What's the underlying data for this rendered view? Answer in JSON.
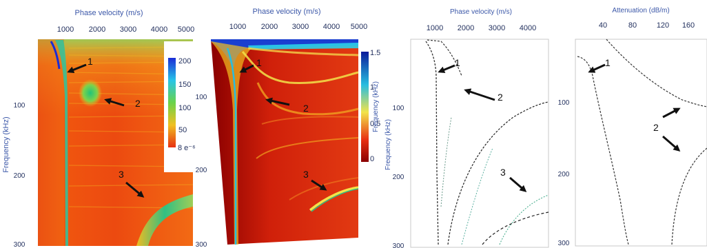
{
  "panels": {
    "a": {
      "x_title": "Phase velocity (m/s)",
      "x_ticks": [
        "1000",
        "2000",
        "3000",
        "4000",
        "5000"
      ],
      "y_title": "Frequency (kHz)",
      "y_ticks": [
        "100",
        "200",
        "300"
      ],
      "colorbar_ticks": [
        "200",
        "150",
        "100",
        "50",
        "8 e⁻⁶"
      ],
      "annotations": [
        "1",
        "2",
        "3"
      ]
    },
    "b": {
      "x_title": "Phase velocity (m/s)",
      "x_ticks": [
        "1000",
        "2000",
        "3000",
        "4000",
        "5000"
      ],
      "y_title": "Frequency (kHz)",
      "y_ticks": [
        "100",
        "200",
        "300"
      ],
      "colorbar_ticks": [
        "1.5",
        "1",
        "0.5",
        "0"
      ],
      "annotations": [
        "1",
        "2",
        "3"
      ]
    },
    "c": {
      "x_title": "Phase velocity (m/s)",
      "x_ticks": [
        "1000",
        "2000",
        "3000",
        "4000"
      ],
      "y_title": "Frequency (kHz)",
      "y_ticks": [
        "100",
        "200",
        "300"
      ],
      "annotations": [
        "1",
        "2",
        "3"
      ]
    },
    "d": {
      "x_title": "Attenuation (dB/m)",
      "x_ticks": [
        "40",
        "80",
        "120",
        "160"
      ],
      "y_ticks": [
        "100",
        "200",
        "300"
      ],
      "annotations": [
        "1",
        "2"
      ]
    }
  },
  "colors": {
    "axis_text": "#3b57a8",
    "arrow": "#111111"
  }
}
